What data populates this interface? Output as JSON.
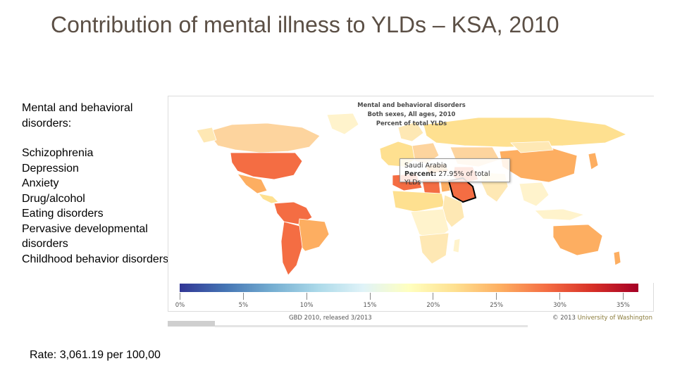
{
  "slide": {
    "title": "Contribution of mental illness to YLDs – KSA, 2010",
    "section_title": "Mental and behavioral disorders:",
    "disorders": [
      "Schizophrenia",
      "Depression",
      "Anxiety",
      "Drug/alcohol",
      "Eating disorders",
      "Pervasive developmental disorders",
      "Childhood behavior disorders"
    ],
    "rate_text": "Rate: 3,061.19 per 100,00"
  },
  "map": {
    "title": "Mental and behavioral disorders",
    "subtitle": "Both sexes, All ages, 2010",
    "measure": "Percent of total YLDs",
    "tooltip": {
      "country": "Saudi Arabia",
      "label": "Percent:",
      "value_text": "27.95% of total YLDs"
    },
    "highlighted_country": "Saudi Arabia",
    "highlighted_value_percent": 27.95,
    "legend": {
      "min": 0,
      "max": 35,
      "tick_labels": [
        "0%",
        "5%",
        "10%",
        "15%",
        "20%",
        "25%",
        "30%",
        "35%"
      ],
      "colors": [
        "#313695",
        "#4575b4",
        "#74add1",
        "#abd9e9",
        "#e0f3f8",
        "#ffffbf",
        "#fee090",
        "#fdae61",
        "#f46d43",
        "#d73027",
        "#a50026"
      ]
    },
    "release_text": "GBD 2010, released 3/2013",
    "credit_prefix": "© 2013",
    "credit_org": "University of Washington"
  }
}
